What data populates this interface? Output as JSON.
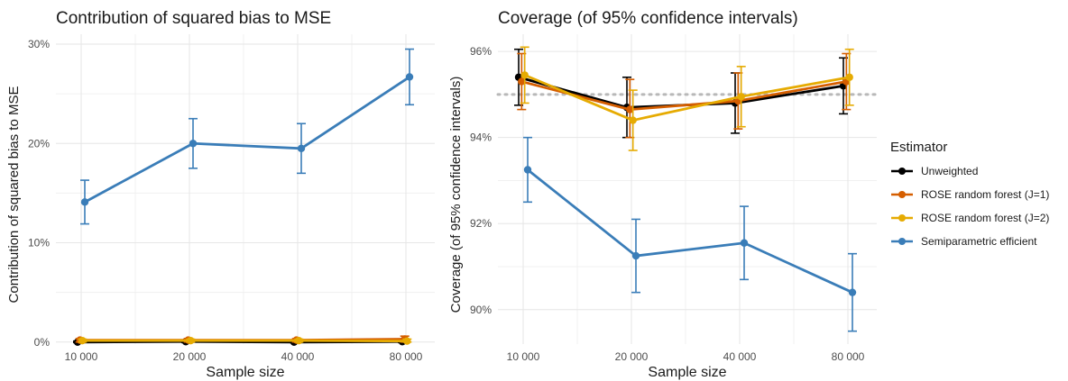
{
  "legend": {
    "title": "Estimator",
    "items": [
      {
        "label": "Unweighted",
        "color": "#000000"
      },
      {
        "label": "ROSE random forest (J=1)",
        "color": "#D55E00"
      },
      {
        "label": "ROSE random forest (J=2)",
        "color": "#E6AB02"
      },
      {
        "label": "Semiparametric efficient",
        "color": "#3A7DB8"
      }
    ]
  },
  "chart_data": [
    {
      "type": "line",
      "title": "Contribution of squared bias to MSE",
      "xlabel": "Sample size",
      "ylabel": "Contribution of squared bias to MSE",
      "x_categories": [
        "10 000",
        "20 000",
        "40 000",
        "80 000"
      ],
      "x_scale": "log2",
      "y_ticks": [
        "0%",
        "10%",
        "20%",
        "30%"
      ],
      "ylim": [
        -0.2,
        31
      ],
      "grid": true,
      "series": [
        {
          "name": "Unweighted",
          "color": "#000000",
          "values": [
            0.0,
            0.05,
            0.0,
            0.05
          ],
          "lower": [
            -0.05,
            -0.05,
            -0.05,
            -0.05
          ],
          "upper": [
            0.1,
            0.15,
            0.1,
            0.15
          ]
        },
        {
          "name": "ROSE random forest (J=1)",
          "color": "#D55E00",
          "values": [
            0.2,
            0.2,
            0.2,
            0.3
          ],
          "lower": [
            0.0,
            0.0,
            0.0,
            0.0
          ],
          "upper": [
            0.35,
            0.35,
            0.35,
            0.6
          ]
        },
        {
          "name": "ROSE random forest (J=2)",
          "color": "#E6AB02",
          "values": [
            0.15,
            0.15,
            0.15,
            0.1
          ],
          "lower": [
            0.0,
            0.0,
            0.0,
            0.0
          ],
          "upper": [
            0.3,
            0.3,
            0.3,
            0.3
          ]
        },
        {
          "name": "Semiparametric efficient",
          "color": "#3A7DB8",
          "values": [
            14.1,
            20.0,
            19.5,
            26.7
          ],
          "lower": [
            11.9,
            17.5,
            17.0,
            23.9
          ],
          "upper": [
            16.3,
            22.5,
            22.0,
            29.5
          ]
        }
      ]
    },
    {
      "type": "line",
      "title": "Coverage (of 95% confidence intervals)",
      "xlabel": "Sample size",
      "ylabel": "Coverage (of 95% confidence intervals)",
      "x_categories": [
        "10 000",
        "20 000",
        "40 000",
        "80 000"
      ],
      "x_scale": "log2",
      "y_ticks": [
        "90%",
        "92%",
        "94%",
        "96%"
      ],
      "ylim": [
        89.2,
        96.4
      ],
      "reference_line": 95,
      "grid": true,
      "series": [
        {
          "name": "Unweighted",
          "color": "#000000",
          "values": [
            95.4,
            94.7,
            94.8,
            95.2
          ],
          "lower": [
            94.75,
            94.0,
            94.1,
            94.55
          ],
          "upper": [
            96.05,
            95.4,
            95.5,
            95.85
          ]
        },
        {
          "name": "ROSE random forest (J=1)",
          "color": "#D55E00",
          "values": [
            95.3,
            94.65,
            94.85,
            95.3
          ],
          "lower": [
            94.65,
            94.0,
            94.2,
            94.65
          ],
          "upper": [
            95.95,
            95.35,
            95.5,
            95.95
          ]
        },
        {
          "name": "ROSE random forest (J=2)",
          "color": "#E6AB02",
          "values": [
            95.45,
            94.4,
            94.95,
            95.4
          ],
          "lower": [
            94.8,
            93.7,
            94.25,
            94.75
          ],
          "upper": [
            96.1,
            95.1,
            95.65,
            96.05
          ]
        },
        {
          "name": "Semiparametric efficient",
          "color": "#3A7DB8",
          "values": [
            93.25,
            91.25,
            91.55,
            90.4
          ],
          "lower": [
            92.5,
            90.4,
            90.7,
            89.5
          ],
          "upper": [
            94.0,
            92.1,
            92.4,
            91.3
          ]
        }
      ]
    }
  ]
}
